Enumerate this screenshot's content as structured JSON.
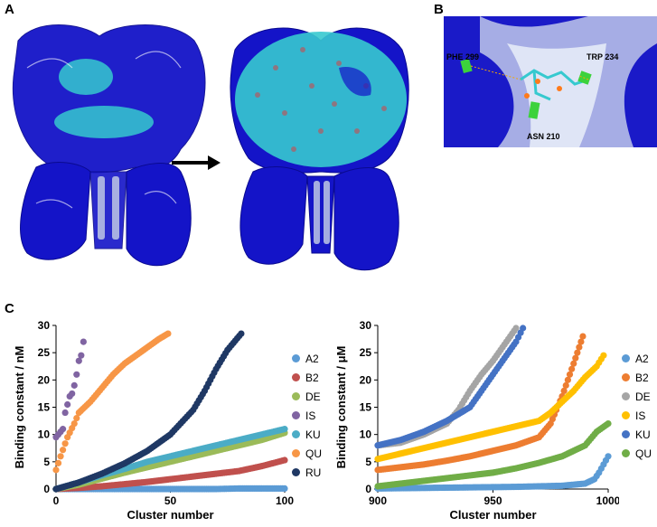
{
  "panels": {
    "a": "A",
    "b": "B",
    "c": "C"
  },
  "panel_b_labels": {
    "phe": "PHE 299",
    "trp": "TRP 234",
    "asn": "ASN 210"
  },
  "colors": {
    "protein": "#1414c8",
    "ligand": "#36c9cf",
    "background": "#ffffff"
  },
  "chart_data": [
    {
      "type": "scatter",
      "xlabel": "Cluster number",
      "ylabel": "Binding constant / nM",
      "xlim": [
        0,
        100
      ],
      "ylim": [
        0,
        30
      ],
      "xticks": [
        0,
        50,
        100
      ],
      "yticks": [
        0,
        5,
        10,
        15,
        20,
        25,
        30
      ],
      "grid": false,
      "legend_position": "right",
      "series": [
        {
          "name": "A2",
          "color": "#5b9bd5",
          "x": [
            0,
            10,
            20,
            30,
            40,
            50,
            60,
            70,
            80,
            90,
            100
          ],
          "y": [
            0.0,
            0.0,
            0.0,
            0.0,
            0.0,
            0.0,
            0.0,
            0.0,
            0.1,
            0.1,
            0.1
          ]
        },
        {
          "name": "B2",
          "color": "#c0504d",
          "x": [
            0,
            10,
            20,
            30,
            40,
            50,
            60,
            70,
            80,
            90,
            100
          ],
          "y": [
            0.0,
            0.2,
            0.5,
            0.9,
            1.3,
            1.8,
            2.3,
            2.8,
            3.3,
            4.2,
            5.3
          ]
        },
        {
          "name": "DE",
          "color": "#9bbb59",
          "x": [
            0,
            10,
            20,
            30,
            40,
            50,
            60,
            70,
            80,
            90,
            100
          ],
          "y": [
            0.0,
            0.8,
            1.9,
            3.0,
            4.0,
            5.0,
            6.0,
            7.0,
            8.0,
            9.0,
            10.3
          ]
        },
        {
          "name": "IS",
          "color": "#8064a2",
          "x": [
            0,
            1,
            2,
            3,
            4,
            5,
            6,
            7,
            8,
            9,
            10,
            11,
            12
          ],
          "y": [
            9.5,
            10.0,
            10.5,
            11.0,
            14.0,
            15.5,
            17.0,
            17.5,
            19.0,
            21.0,
            23.5,
            24.5,
            27.0
          ]
        },
        {
          "name": "KU",
          "color": "#4bacc6",
          "x": [
            0,
            10,
            20,
            30,
            40,
            50,
            60,
            70,
            80,
            90,
            100
          ],
          "y": [
            0.0,
            1.2,
            2.5,
            3.7,
            5.0,
            6.0,
            7.0,
            8.0,
            9.0,
            10.0,
            11.0
          ]
        },
        {
          "name": "QU",
          "color": "#f79646",
          "x": [
            0,
            2,
            5,
            8,
            10,
            15,
            20,
            25,
            30,
            35,
            40,
            45,
            49
          ],
          "y": [
            3.5,
            6.0,
            9.5,
            12.0,
            14.0,
            16.0,
            18.5,
            21.0,
            23.0,
            24.5,
            26.0,
            27.5,
            28.5
          ]
        },
        {
          "name": "RU",
          "color": "#1f3864",
          "x": [
            0,
            10,
            20,
            30,
            40,
            50,
            60,
            65,
            70,
            75,
            81
          ],
          "y": [
            0.0,
            1.2,
            2.8,
            4.7,
            7.0,
            10.0,
            14.5,
            18.0,
            22.0,
            25.5,
            28.5
          ]
        }
      ]
    },
    {
      "type": "scatter",
      "xlabel": "Cluster number",
      "ylabel": "Binding constant / μM",
      "xlim": [
        900,
        1000
      ],
      "ylim": [
        0,
        30
      ],
      "xticks": [
        900,
        950,
        1000
      ],
      "yticks": [
        0,
        5,
        10,
        15,
        20,
        25,
        30
      ],
      "grid": false,
      "legend_position": "right",
      "series": [
        {
          "name": "A2",
          "color": "#5b9bd5",
          "x": [
            900,
            920,
            940,
            960,
            980,
            990,
            994,
            996,
            998,
            1000
          ],
          "y": [
            0.1,
            0.2,
            0.3,
            0.4,
            0.6,
            1.0,
            1.8,
            3.0,
            4.5,
            6.0
          ]
        },
        {
          "name": "B2",
          "color": "#ed7d31",
          "x": [
            900,
            910,
            920,
            930,
            940,
            950,
            960,
            970,
            975,
            980,
            985,
            989
          ],
          "y": [
            3.5,
            4.0,
            4.5,
            5.2,
            6.0,
            7.0,
            8.0,
            9.5,
            12.0,
            17.0,
            23.0,
            28.0
          ]
        },
        {
          "name": "DE",
          "color": "#a5a5a5",
          "x": [
            900,
            910,
            920,
            930,
            935,
            940,
            945,
            950,
            955,
            960
          ],
          "y": [
            8.0,
            8.5,
            10.0,
            12.0,
            14.5,
            18.0,
            21.0,
            23.5,
            26.5,
            29.5
          ]
        },
        {
          "name": "IS",
          "color": "#ffc000",
          "x": [
            900,
            910,
            920,
            930,
            940,
            950,
            960,
            970,
            975,
            980,
            985,
            990,
            995,
            998
          ],
          "y": [
            5.5,
            6.5,
            7.5,
            8.5,
            9.5,
            10.5,
            11.5,
            12.5,
            14.0,
            16.0,
            18.0,
            20.5,
            22.5,
            24.5
          ]
        },
        {
          "name": "KU",
          "color": "#4472c4",
          "x": [
            900,
            910,
            920,
            930,
            940,
            945,
            950,
            955,
            960,
            963
          ],
          "y": [
            8.0,
            9.0,
            10.5,
            12.5,
            15.0,
            18.0,
            21.0,
            24.0,
            27.0,
            29.5
          ]
        },
        {
          "name": "QU",
          "color": "#70ad47",
          "x": [
            900,
            910,
            920,
            930,
            940,
            950,
            960,
            970,
            980,
            990,
            995,
            1000
          ],
          "y": [
            0.5,
            1.0,
            1.5,
            2.0,
            2.5,
            3.0,
            3.8,
            4.8,
            6.0,
            8.0,
            10.5,
            12.0
          ]
        }
      ]
    }
  ]
}
